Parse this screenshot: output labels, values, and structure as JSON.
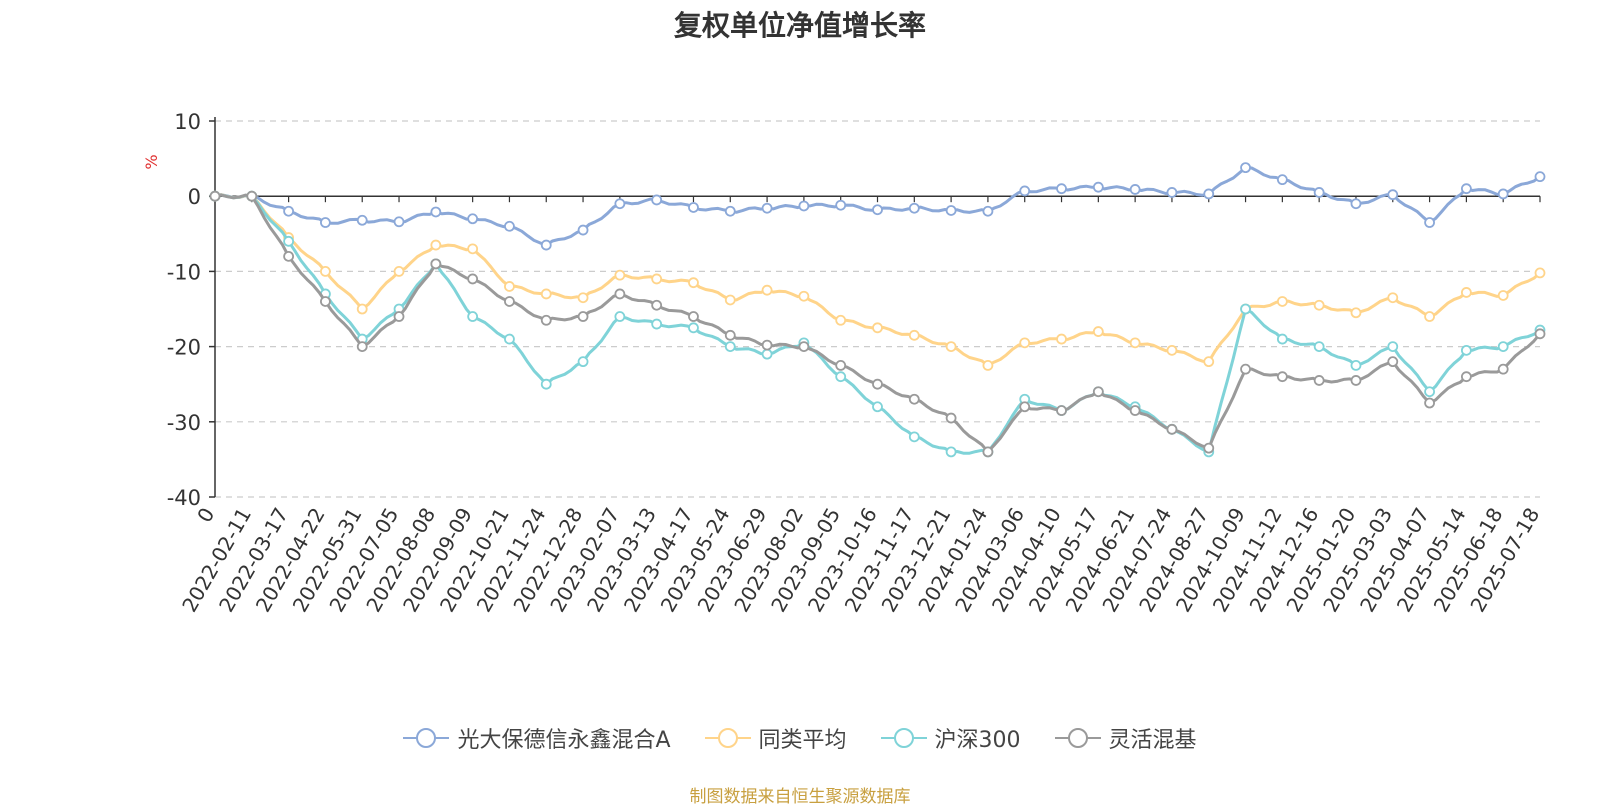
{
  "chart_data": {
    "type": "line",
    "title": "复权单位净值增长率",
    "ylabel": "%",
    "ylim": [
      -40,
      10
    ],
    "yticks": [
      10,
      0,
      -10,
      -20,
      -30,
      -40
    ],
    "grid": true,
    "legend_position": "bottom",
    "x_start_label": "0",
    "x": [
      "2022-02-11",
      "2022-03-17",
      "2022-04-22",
      "2022-05-31",
      "2022-07-05",
      "2022-08-08",
      "2022-09-09",
      "2022-10-21",
      "2022-11-24",
      "2022-12-28",
      "2023-02-07",
      "2023-03-13",
      "2023-04-17",
      "2023-05-24",
      "2023-06-29",
      "2023-08-02",
      "2023-09-05",
      "2023-10-16",
      "2023-11-17",
      "2023-12-21",
      "2024-01-24",
      "2024-03-06",
      "2024-04-10",
      "2024-05-17",
      "2024-06-21",
      "2024-07-24",
      "2024-08-27",
      "2024-10-09",
      "2024-11-12",
      "2024-12-16",
      "2025-01-20",
      "2025-03-03",
      "2025-04-07",
      "2025-05-14",
      "2025-06-18",
      "2025-07-18"
    ],
    "series": [
      {
        "name": "光大保德信永鑫混合A",
        "color": "#8ba8d8",
        "values": [
          0,
          -2,
          -3.5,
          -3.2,
          -3.4,
          -2.1,
          -3,
          -4,
          -6.5,
          -4.5,
          -1,
          -0.5,
          -1.5,
          -2,
          -1.6,
          -1.3,
          -1.2,
          -1.8,
          -1.6,
          -1.9,
          -2,
          0.7,
          1,
          1.2,
          0.9,
          0.5,
          0.3,
          3.8,
          2.2,
          0.5,
          -1,
          0.2,
          -3.5,
          1,
          0.3,
          2.6
        ]
      },
      {
        "name": "同类平均",
        "color": "#ffd48a",
        "values": [
          0,
          -5.5,
          -10,
          -15,
          -10,
          -6.5,
          -7,
          -12,
          -13,
          -13.5,
          -10.5,
          -11,
          -11.5,
          -13.8,
          -12.5,
          -13.3,
          -16.5,
          -17.5,
          -18.5,
          -20,
          -22.5,
          -19.5,
          -19,
          -18,
          -19.5,
          -20.5,
          -22,
          -15,
          -14,
          -14.5,
          -15.5,
          -13.5,
          -16,
          -12.8,
          -13.2,
          -10.2
        ]
      },
      {
        "name": "沪深300",
        "color": "#7fd3d8",
        "values": [
          0,
          -6,
          -13,
          -19,
          -15,
          -9,
          -16,
          -19,
          -25,
          -22,
          -16,
          -17,
          -17.5,
          -20,
          -21,
          -19.5,
          -24,
          -28,
          -32,
          -34,
          -34,
          -27,
          -28.5,
          -26,
          -28,
          -31,
          -34,
          -15,
          -19,
          -20,
          -22.5,
          -20,
          -26,
          -20.5,
          -20,
          -17.8
        ]
      },
      {
        "name": "灵活混基",
        "color": "#9a9a9a",
        "values": [
          0,
          -8,
          -14,
          -20,
          -16,
          -9,
          -11,
          -14,
          -16.5,
          -16,
          -13,
          -14.5,
          -16,
          -18.5,
          -19.8,
          -20,
          -22.5,
          -25,
          -27,
          -29.5,
          -34,
          -28,
          -28.5,
          -26,
          -28.5,
          -31,
          -33.5,
          -23,
          -24,
          -24.5,
          -24.5,
          -22,
          -27.5,
          -24,
          -23,
          -18.3
        ]
      }
    ]
  },
  "source": "制图数据来自恒生聚源数据库"
}
